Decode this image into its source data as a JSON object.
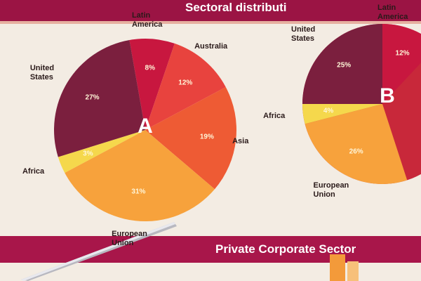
{
  "chart_data": [
    {
      "type": "pie",
      "title": "Sectoral distributi",
      "label": "A",
      "categories": [
        "Latin America",
        "Australia",
        "Asia",
        "European Union",
        "Africa",
        "United States"
      ],
      "values": [
        8,
        12,
        19,
        31,
        3,
        27
      ],
      "value_labels": [
        "8%",
        "12%",
        "19%",
        "31%",
        "3%",
        "27%"
      ],
      "colors": [
        "#c8173f",
        "#e8433e",
        "#ee5b34",
        "#f7a23c",
        "#f5d84c",
        "#7b1f3e"
      ]
    },
    {
      "type": "pie",
      "label": "B",
      "categories": [
        "European Union",
        "Africa",
        "United States",
        "Latin America"
      ],
      "values": [
        26,
        4,
        25,
        12
      ],
      "value_labels": [
        "26%",
        "4%",
        "25%",
        "12%"
      ],
      "colors": [
        "#f7a23c",
        "#f5d84c",
        "#7b1f3e",
        "#c8173f"
      ]
    }
  ],
  "footer": {
    "title": "Private Corporate Sector"
  }
}
